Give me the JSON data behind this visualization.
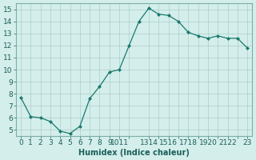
{
  "x": [
    0,
    1,
    2,
    3,
    4,
    5,
    6,
    7,
    8,
    9,
    10,
    11,
    12,
    13,
    14,
    15,
    16,
    17,
    18,
    19,
    20,
    21,
    22,
    23
  ],
  "y": [
    7.7,
    6.1,
    6.0,
    5.7,
    4.9,
    4.7,
    5.3,
    7.6,
    8.6,
    9.8,
    10.0,
    12.0,
    14.0,
    15.1,
    14.6,
    14.5,
    14.0,
    13.1,
    12.8,
    12.6,
    12.8,
    12.6,
    12.6,
    11.8
  ],
  "line_color": "#1a7a6e",
  "marker": "D",
  "marker_size": 2.0,
  "bg_color": "#d4eeeb",
  "grid_color": "#aacfcb",
  "xlabel": "Humidex (Indice chaleur)",
  "ylim": [
    4.5,
    15.5
  ],
  "xlim": [
    -0.5,
    23.5
  ],
  "yticks": [
    5,
    6,
    7,
    8,
    9,
    10,
    11,
    12,
    13,
    14,
    15
  ],
  "xtick_positions": [
    0,
    1,
    2,
    3,
    4,
    5,
    6,
    7,
    8,
    9,
    10,
    11,
    13,
    14,
    15,
    16,
    17,
    18,
    19,
    20,
    21,
    22,
    23
  ],
  "xtick_labels": [
    "0",
    "1",
    "2",
    "3",
    "4",
    "5",
    "6",
    "7",
    "8",
    "9",
    "1011",
    "",
    "1314",
    "",
    "1516",
    "",
    "1718",
    "",
    "1920",
    "",
    "2122",
    "",
    "23"
  ],
  "label_fontsize": 7,
  "tick_fontsize": 6.5
}
